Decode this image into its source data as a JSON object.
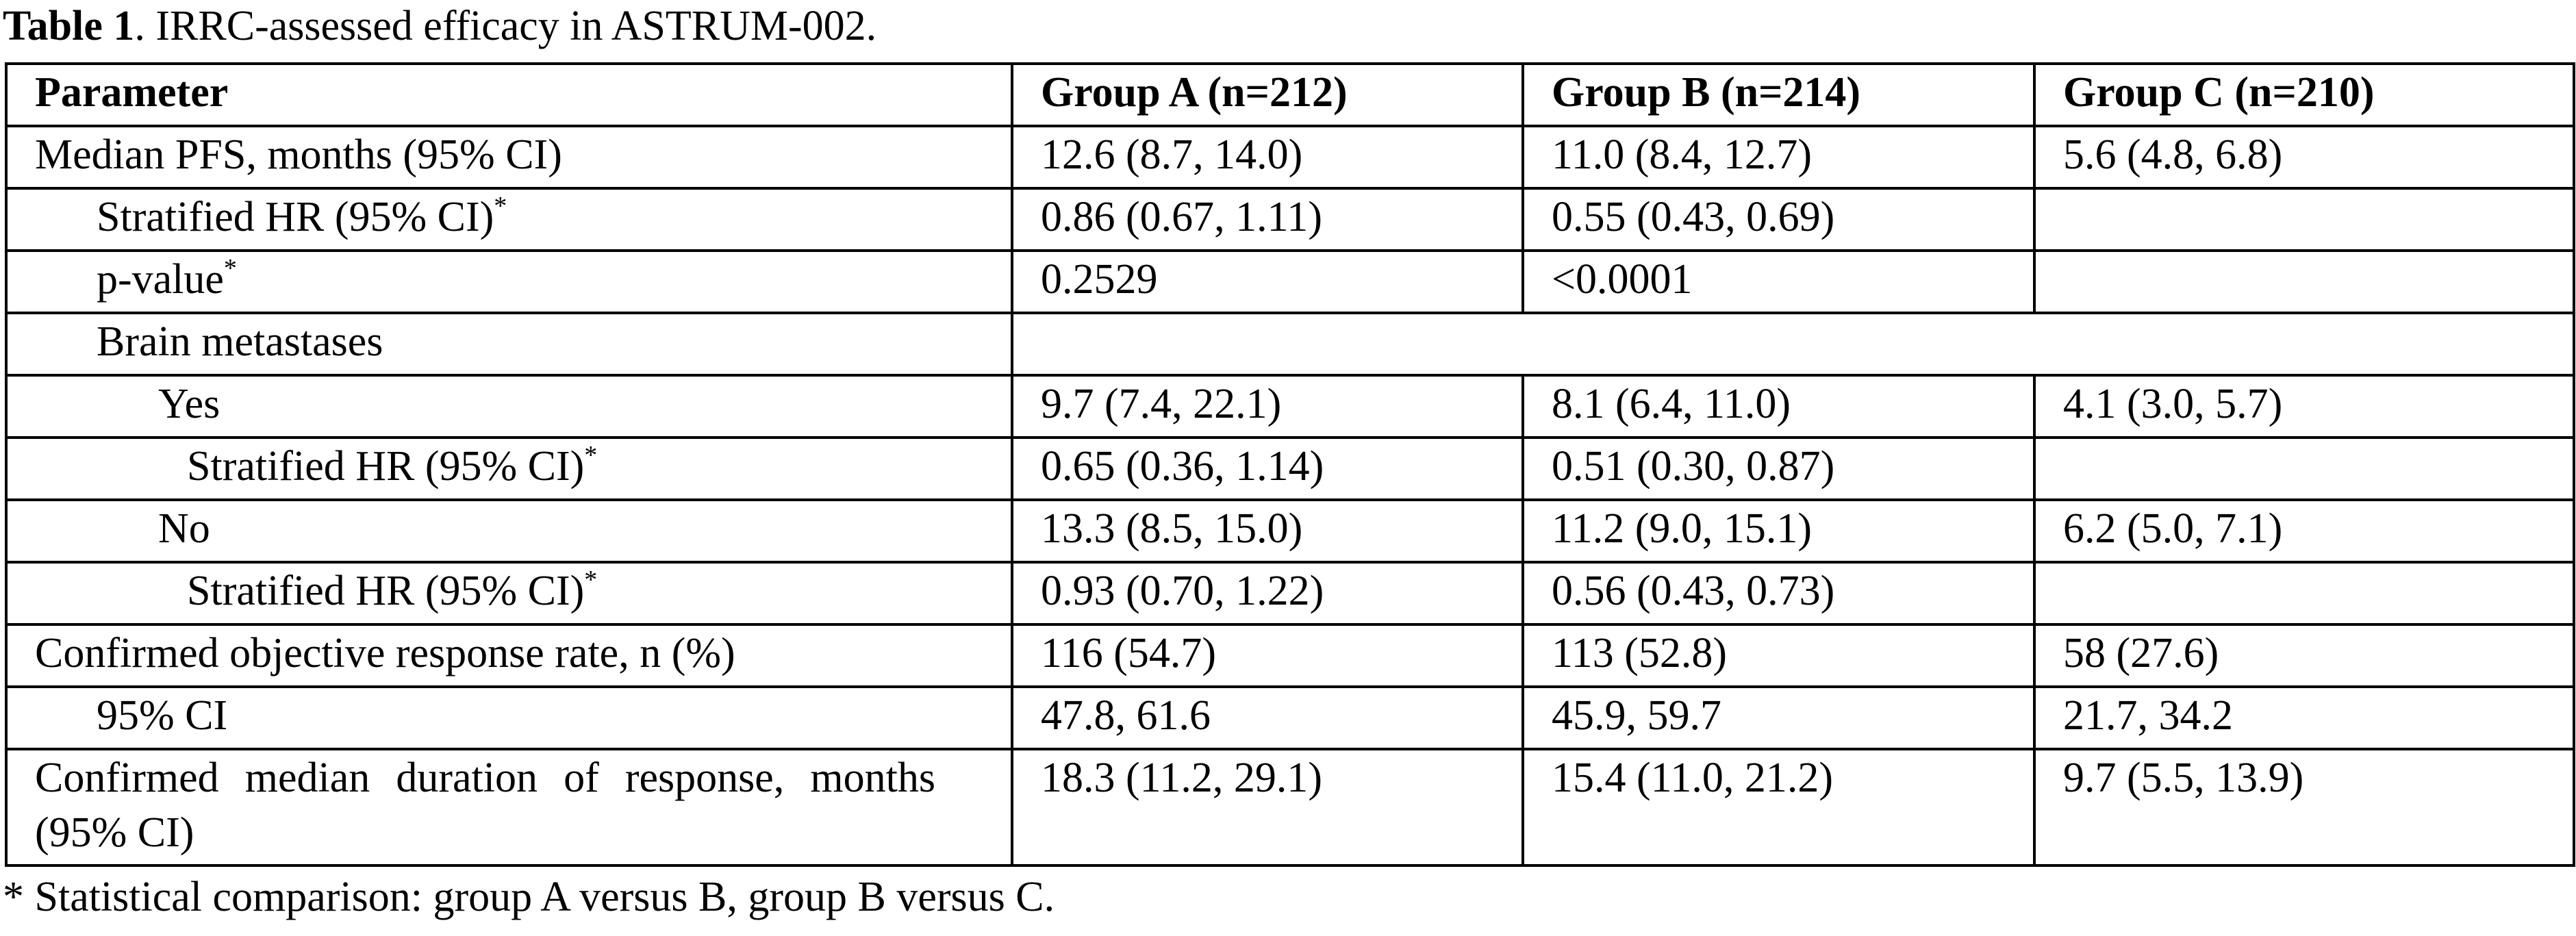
{
  "caption": {
    "label": "Table 1",
    "text": ". IRRC-assessed efficacy in ASTRUM-002."
  },
  "table": {
    "header": [
      "Parameter",
      "Group A (n=212)",
      "Group B (n=214)",
      "Group C (n=210)"
    ],
    "rows": [
      {
        "parameter": "Median PFS, months (95% CI)",
        "values": [
          "12.6 (8.7, 14.0)",
          "11.0 (8.4, 12.7)",
          "5.6 (4.8, 6.8)"
        ]
      },
      {
        "parameter": "Stratified HR (95% CI)",
        "superscript": "*",
        "values": [
          "0.86 (0.67, 1.11)",
          "0.55 (0.43, 0.69)"
        ]
      },
      {
        "parameter": "p-value",
        "superscript": "*",
        "values": [
          "0.2529",
          "<0.0001"
        ]
      },
      {
        "parameter": "Brain metastases"
      },
      {
        "parameter": "Yes",
        "values": [
          "9.7 (7.4, 22.1)",
          "8.1 (6.4, 11.0)",
          "4.1 (3.0, 5.7)"
        ]
      },
      {
        "parameter": "Stratified HR (95% CI)",
        "superscript": "*",
        "values": [
          "0.65 (0.36, 1.14)",
          "0.51 (0.30, 0.87)"
        ]
      },
      {
        "parameter": "No",
        "values": [
          "13.3 (8.5, 15.0)",
          "11.2 (9.0, 15.1)",
          "6.2 (5.0, 7.1)"
        ]
      },
      {
        "parameter": "Stratified HR (95% CI)",
        "superscript": "*",
        "values": [
          "0.93 (0.70, 1.22)",
          "0.56 (0.43, 0.73)"
        ]
      },
      {
        "parameter": "Confirmed objective response rate, n (%)",
        "values": [
          "116 (54.7)",
          "113 (52.8)",
          "58 (27.6)"
        ]
      },
      {
        "parameter": "95% CI",
        "values": [
          "47.8, 61.6",
          "45.9, 59.7",
          "21.7, 34.2"
        ]
      },
      {
        "parameter": "Confirmed median duration of response, months (95% CI)",
        "values": [
          "18.3 (11.2, 29.1)",
          "15.4 (11.0, 21.2)",
          "9.7 (5.5, 13.9)"
        ]
      }
    ]
  },
  "footnote": "* Statistical comparison: group A versus B, group B versus C."
}
